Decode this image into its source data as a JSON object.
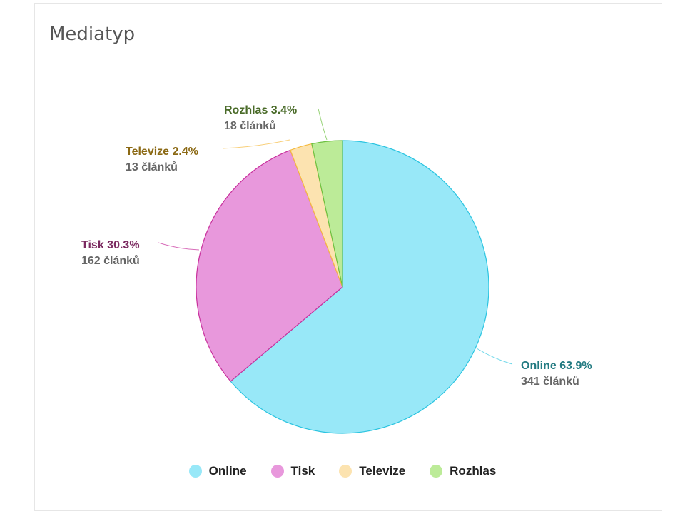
{
  "card": {
    "title": "Mediatyp"
  },
  "chart_data": {
    "type": "pie",
    "title": "Mediatyp",
    "slices": [
      {
        "name": "Online",
        "value": 341,
        "percent_label": "Online 63.9%",
        "count_label": "341 článků",
        "color": "#98e8f8",
        "stroke": "#2bc4e0",
        "label_color": "#237b82"
      },
      {
        "name": "Tisk",
        "value": 162,
        "percent_label": "Tisk 30.3%",
        "count_label": "162 článků",
        "color": "#e898dc",
        "stroke": "#c8309c",
        "label_color": "#7b2a60"
      },
      {
        "name": "Televize",
        "value": 13,
        "percent_label": "Televize 2.4%",
        "count_label": "13 článků",
        "color": "#fce3b0",
        "stroke": "#f5bb40",
        "label_color": "#8b6914"
      },
      {
        "name": "Rozhlas",
        "value": 18,
        "percent_label": "Rozhlas 3.4%",
        "count_label": "18 článků",
        "color": "#bceb98",
        "stroke": "#6cc040",
        "label_color": "#4a6b29"
      }
    ],
    "legend_position": "bottom"
  }
}
